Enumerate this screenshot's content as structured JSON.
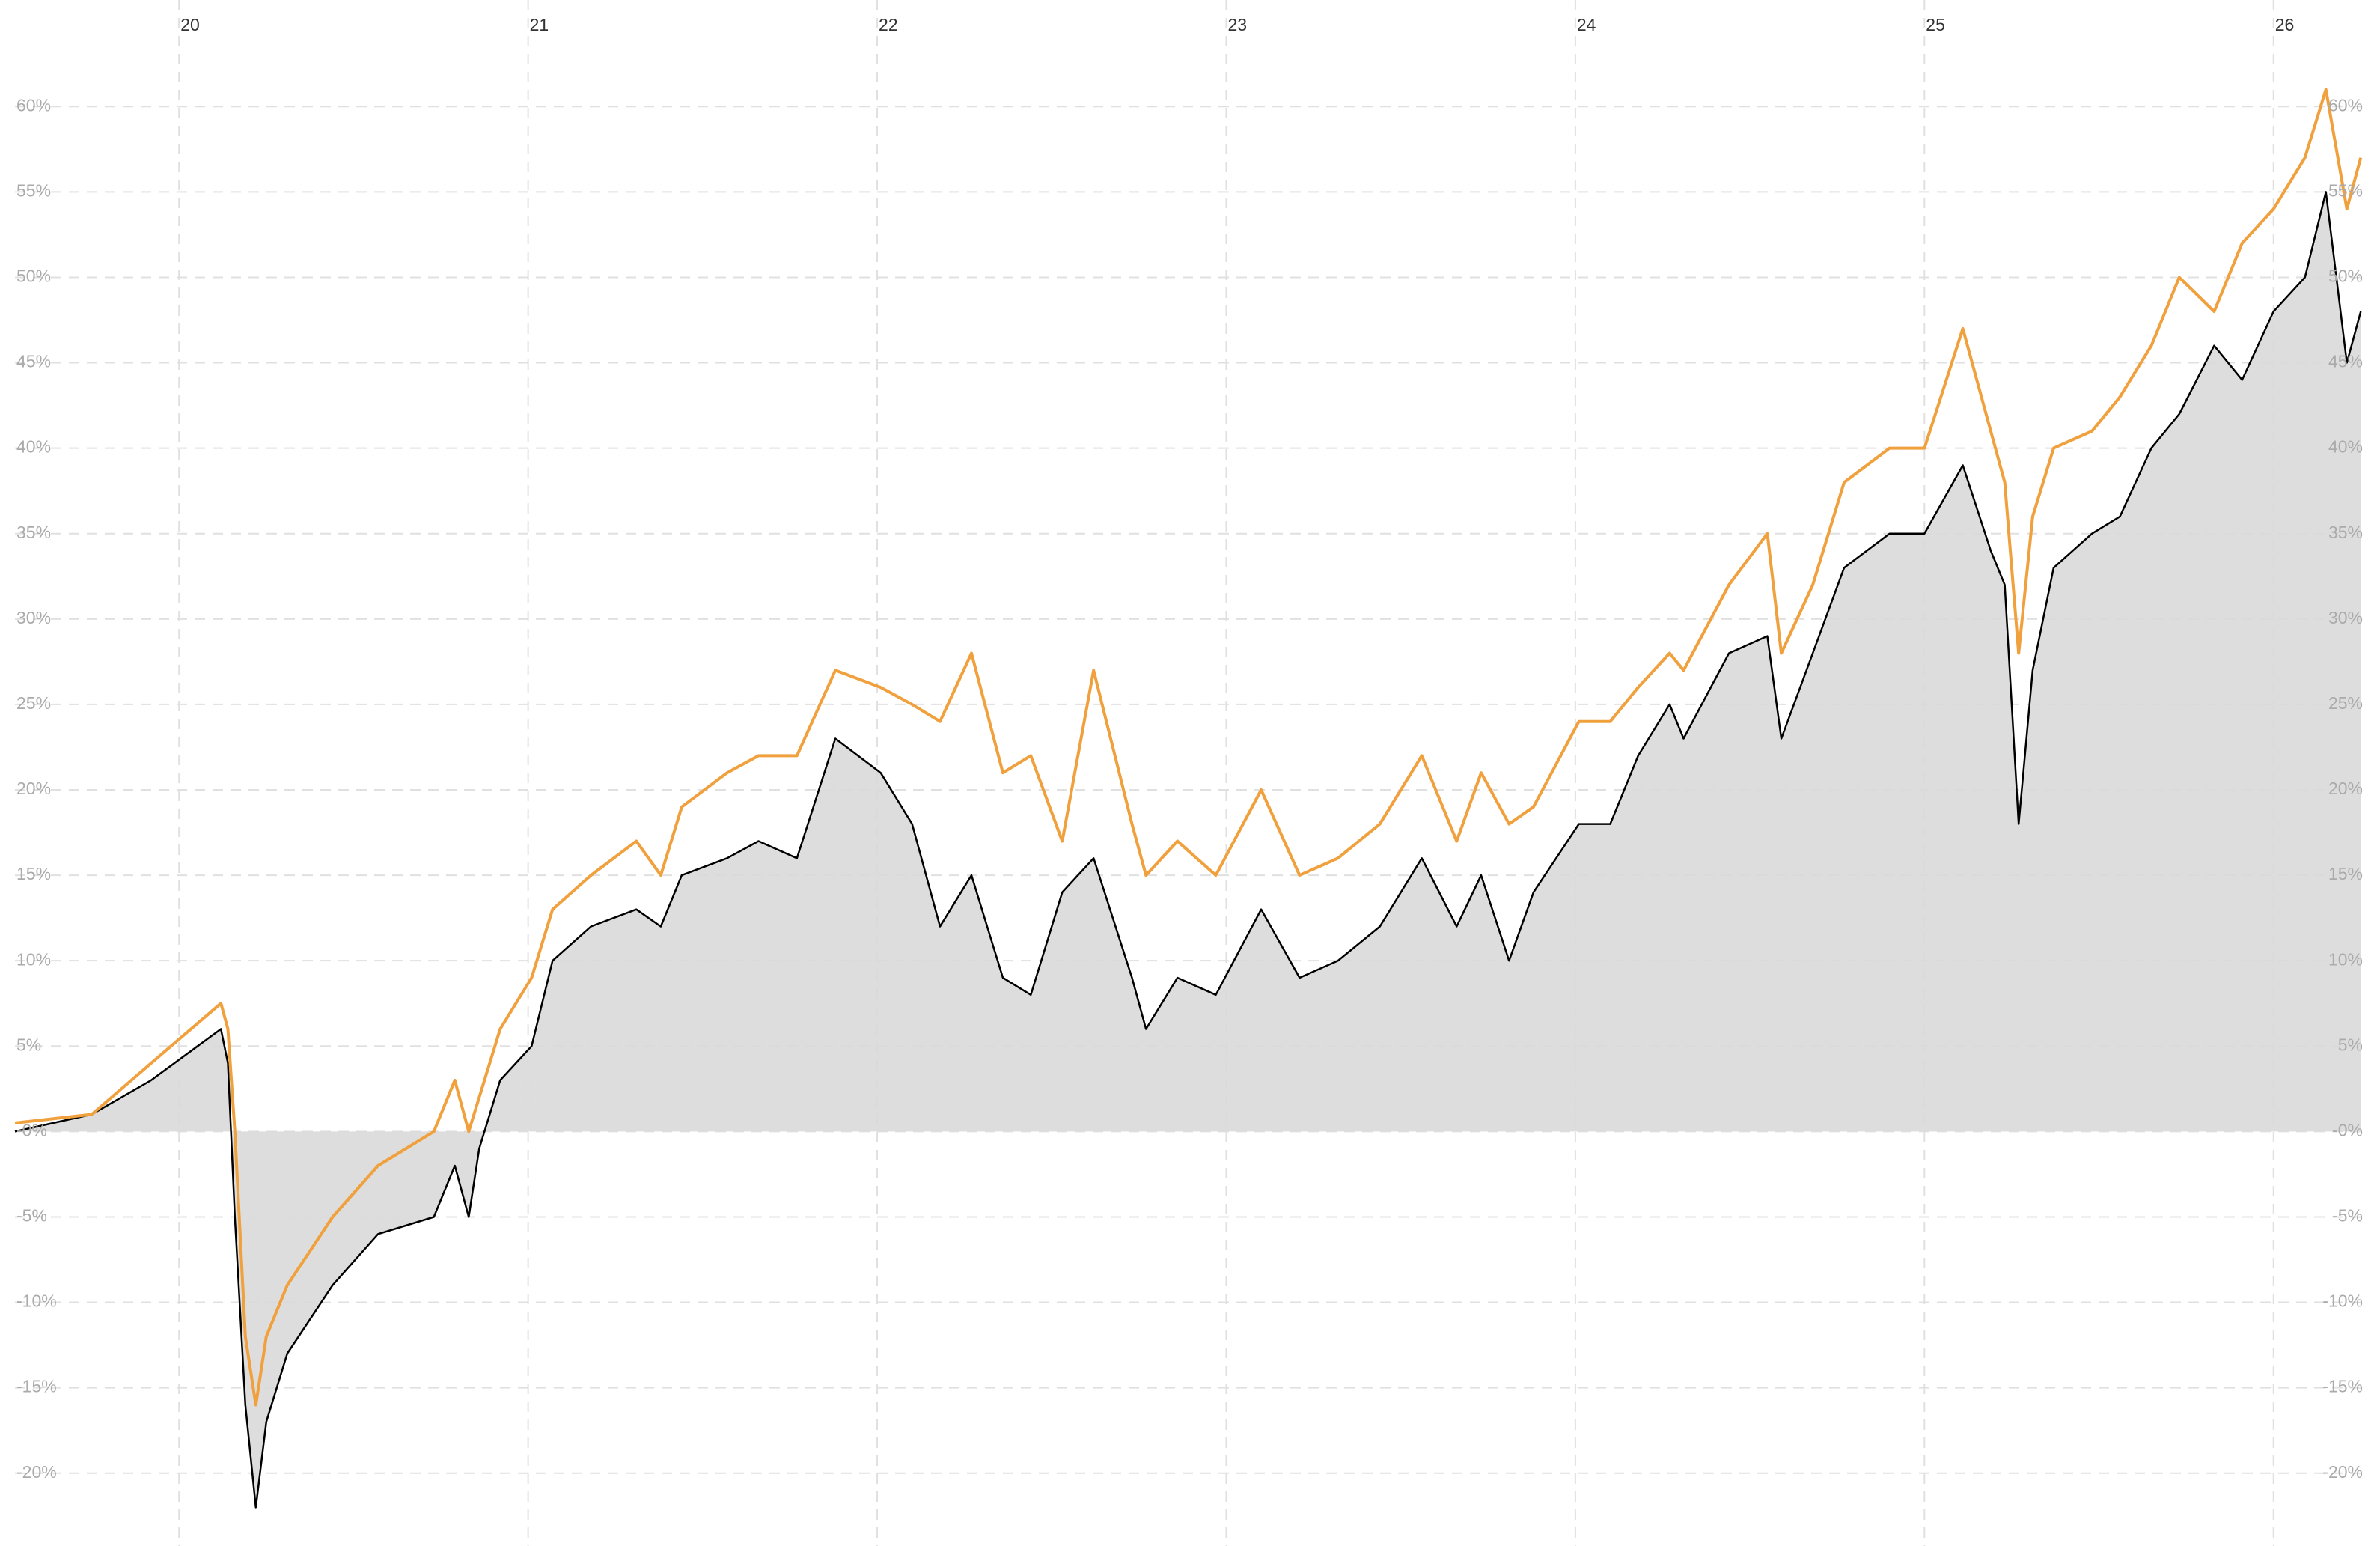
{
  "chart_data": {
    "type": "line",
    "x": [
      19.53,
      19.75,
      19.92,
      20.12,
      20.14,
      20.16,
      20.19,
      20.22,
      20.25,
      20.31,
      20.44,
      20.57,
      20.73,
      20.79,
      20.83,
      20.86,
      20.92,
      21.01,
      21.07,
      21.18,
      21.31,
      21.38,
      21.44,
      21.57,
      21.66,
      21.77,
      21.88,
      22.01,
      22.1,
      22.18,
      22.27,
      22.36,
      22.44,
      22.53,
      22.62,
      22.73,
      22.77,
      22.86,
      22.97,
      23.1,
      23.21,
      23.32,
      23.44,
      23.56,
      23.66,
      23.73,
      23.81,
      23.88,
      24.01,
      24.1,
      24.18,
      24.27,
      24.31,
      24.44,
      24.55,
      24.59,
      24.68,
      24.77,
      24.9,
      25.0,
      25.11,
      25.19,
      25.23,
      25.27,
      25.31,
      25.37,
      25.48,
      25.56,
      25.65,
      25.73,
      25.83,
      25.91,
      26.0,
      26.09,
      26.15,
      26.21,
      26.25
    ],
    "series": [
      {
        "color": "#000000",
        "fill": "#d9d9d9",
        "values": [
          0,
          1,
          3,
          6,
          4,
          -5,
          -16,
          -22,
          -17,
          -13,
          -9,
          -6,
          -5,
          -2,
          -5,
          -1,
          3,
          5,
          10,
          12,
          13,
          12,
          15,
          16,
          17,
          16,
          23,
          21,
          18,
          12,
          15,
          9,
          8,
          14,
          16,
          9,
          6,
          9,
          8,
          13,
          9,
          10,
          12,
          16,
          12,
          15,
          10,
          14,
          18,
          18,
          22,
          25,
          23,
          28,
          29,
          23,
          28,
          33,
          35,
          35,
          39,
          34,
          32,
          18,
          27,
          33,
          35,
          36,
          40,
          42,
          46,
          44,
          48,
          50,
          55,
          45,
          48
        ]
      },
      {
        "color": "#f0a03c",
        "values": [
          0.5,
          1,
          4,
          7.5,
          6,
          0,
          -12,
          -16,
          -12,
          -9,
          -5,
          -2,
          0,
          3,
          0,
          2,
          6,
          9,
          13,
          15,
          17,
          15,
          19,
          21,
          22,
          22,
          27,
          26,
          25,
          24,
          28,
          21,
          22,
          17,
          27,
          18,
          15,
          17,
          15,
          20,
          15,
          16,
          18,
          22,
          17,
          21,
          18,
          19,
          24,
          24,
          26,
          28,
          27,
          32,
          35,
          28,
          32,
          38,
          40,
          40,
          47,
          41,
          38,
          28,
          36,
          40,
          41,
          43,
          46,
          50,
          48,
          52,
          54,
          57,
          61,
          54,
          57
        ]
      }
    ],
    "xlim": [
      19.53,
      26.26
    ],
    "xticks": [
      20,
      21,
      22,
      23,
      24,
      25,
      26
    ],
    "ylim": [
      -24,
      64
    ],
    "yticks": [
      {
        "value": -20,
        "label": "-20%"
      },
      {
        "value": -15,
        "label": "-15%"
      },
      {
        "value": -10,
        "label": "-10%"
      },
      {
        "value": -5,
        "label": "-5%"
      },
      {
        "value": 0,
        "label": "-0%"
      },
      {
        "value": 5,
        "label": "5%"
      },
      {
        "value": 10,
        "label": "10%"
      },
      {
        "value": 15,
        "label": "15%"
      },
      {
        "value": 20,
        "label": "20%"
      },
      {
        "value": 25,
        "label": "25%"
      },
      {
        "value": 30,
        "label": "30%"
      },
      {
        "value": 35,
        "label": "35%"
      },
      {
        "value": 40,
        "label": "40%"
      },
      {
        "value": 45,
        "label": "45%"
      },
      {
        "value": 50,
        "label": "50%"
      },
      {
        "value": 55,
        "label": "55%"
      },
      {
        "value": 60,
        "label": "60%"
      }
    ],
    "grid": true
  }
}
